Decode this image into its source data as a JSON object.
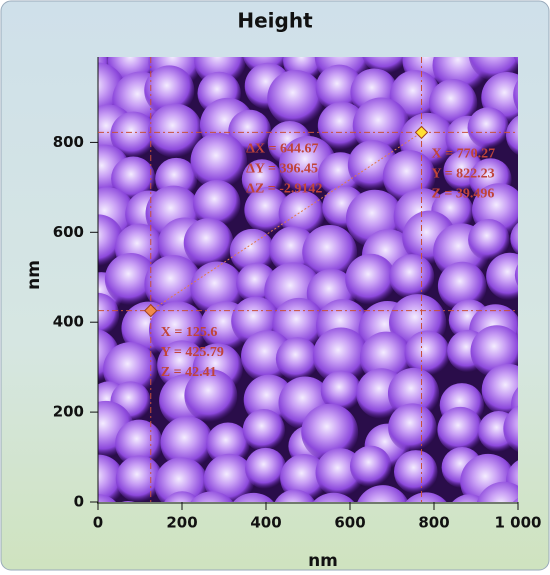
{
  "chart_data": {
    "type": "afm-image",
    "title": "Height",
    "xlabel": "nm",
    "ylabel": "nm",
    "xlim": [
      0,
      1000
    ],
    "ylim": [
      0,
      990
    ],
    "xticks": [
      0,
      200,
      400,
      600,
      800,
      {
        "value": 1000,
        "label": "1 000"
      }
    ],
    "yticks": [
      0,
      200,
      400,
      600,
      800
    ],
    "cursors": {
      "x": [
        125.6,
        770.27
      ],
      "y": [
        425.79,
        822.23
      ],
      "colors": [
        "#f08a4b",
        "#ffe033"
      ],
      "labels": [
        [
          "X = 125.6",
          "Y = 425.79",
          "Z = 42.41"
        ],
        [
          "X = 770.27",
          "Y = 822.23",
          "Z = 39.496"
        ]
      ],
      "delta_labels": [
        "ΔX = 644.67",
        "ΔY = 396.45",
        "ΔZ = -2.9142"
      ]
    }
  }
}
